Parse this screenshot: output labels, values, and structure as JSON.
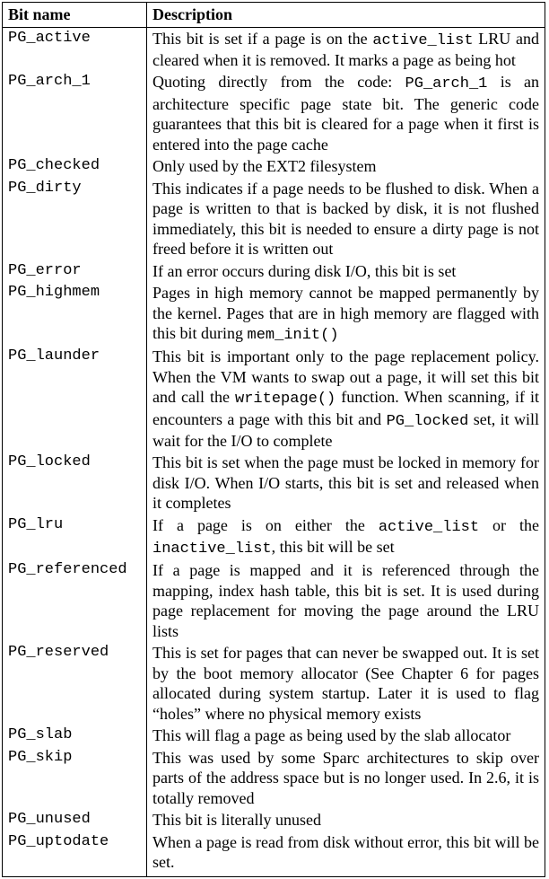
{
  "table": {
    "header": {
      "name": "Bit name",
      "desc": "Description"
    },
    "rows": [
      {
        "name": "PG_active",
        "desc": "This bit is set if a page is on the <span class=\"tt\">active_list</span> LRU and cleared when it is removed. It marks a page as being hot"
      },
      {
        "name": "PG_arch_1",
        "desc": "Quoting directly from the code: <span class=\"tt\">PG_arch_1</span> is an architecture specific page state bit. The generic code guarantees that this bit is cleared for a page when it first is entered into the page cache"
      },
      {
        "name": "PG_checked",
        "desc": "Only used by the EXT2 filesystem"
      },
      {
        "name": "PG_dirty",
        "desc": "This indicates if a page needs to be flushed to disk. When a page is written to that is backed by disk, it is not flushed immediately, this bit is needed to ensure a dirty page is not freed before it is written out"
      },
      {
        "name": "PG_error",
        "desc": "If an error occurs during disk I/O, this bit is set"
      },
      {
        "name": "PG_highmem",
        "desc": "Pages in high memory cannot be mapped permanently by the kernel. Pages that are in high memory are flagged with this bit during <span class=\"tt\">mem_init()</span>"
      },
      {
        "name": "PG_launder",
        "desc": "This bit is important only to the page replacement policy. When the VM wants to swap out a page, it will set this bit and call the <span class=\"tt\">writepage()</span> function. When scanning, if it encounters a page with this bit and <span class=\"tt\">PG_locked</span> set, it will wait for the I/O to complete"
      },
      {
        "name": "PG_locked",
        "desc": "This bit is set when the page must be locked in memory for disk I/O. When I/O starts, this bit is set and released when it completes"
      },
      {
        "name": "PG_lru",
        "desc": "If a page is on either the <span class=\"tt\">active_list</span> or the <span class=\"tt\">inactive_list</span>, this bit will be set"
      },
      {
        "name": "PG_referenced",
        "desc": "If a page is mapped and it is referenced through the mapping, index hash table, this bit is set. It is used during page replacement for moving the page around the LRU lists"
      },
      {
        "name": "PG_reserved",
        "desc": "This is set for pages that can never be swapped out. It is set by the boot memory allocator (See Chapter 6 for pages allocated during system startup. Later it is used to flag “holes” where no physical memory exists"
      },
      {
        "name": "PG_slab",
        "desc": "This will flag a page as being used by the slab allocator"
      },
      {
        "name": "PG_skip",
        "desc": "This was used by some Sparc architectures to skip over parts of the address space but is no longer used. In 2.6, it is totally removed"
      },
      {
        "name": "PG_unused",
        "desc": "This bit is literally unused"
      },
      {
        "name": "PG_uptodate",
        "desc": "When a page is read from disk without error, this bit will be set."
      }
    ]
  }
}
